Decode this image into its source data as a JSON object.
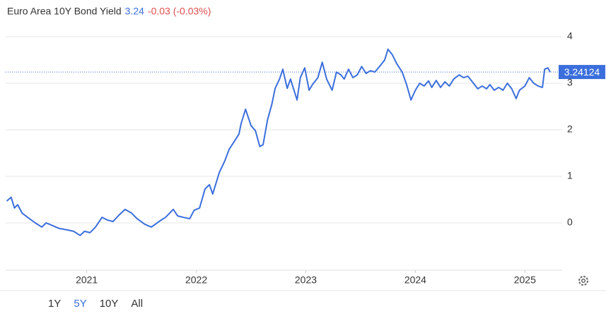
{
  "chart_data": {
    "type": "line",
    "title": "Euro Area 10Y Bond Yield",
    "last_value": 3.24,
    "change_label": "-0.03 (-0.03%)",
    "last_price": 3.24124,
    "color": "#3b6fdc",
    "xlim": [
      2020.26,
      2025.34
    ],
    "ylim": [
      -1,
      4.5
    ],
    "xticks": [
      2021,
      2022,
      2023,
      2024,
      2025
    ],
    "yticks": [
      0,
      1,
      2,
      3,
      4
    ],
    "grid": true,
    "x": [
      2020.27,
      2020.31,
      2020.34,
      2020.37,
      2020.41,
      2020.46,
      2020.53,
      2020.59,
      2020.63,
      2020.69,
      2020.75,
      2020.82,
      2020.88,
      2020.94,
      2020.98,
      2021.03,
      2021.08,
      2021.14,
      2021.19,
      2021.24,
      2021.3,
      2021.35,
      2021.41,
      2021.46,
      2021.53,
      2021.59,
      2021.66,
      2021.72,
      2021.79,
      2021.83,
      2021.88,
      2021.94,
      2021.98,
      2022.03,
      2022.08,
      2022.12,
      2022.15,
      2022.21,
      2022.26,
      2022.3,
      2022.35,
      2022.39,
      2022.41,
      2022.45,
      2022.5,
      2022.54,
      2022.58,
      2022.61,
      2022.65,
      2022.69,
      2022.72,
      2022.76,
      2022.79,
      2022.83,
      2022.86,
      2022.92,
      2022.95,
      2022.99,
      2023.03,
      2023.06,
      2023.11,
      2023.15,
      2023.19,
      2023.24,
      2023.28,
      2023.32,
      2023.35,
      2023.39,
      2023.43,
      2023.47,
      2023.51,
      2023.55,
      2023.59,
      2023.63,
      2023.67,
      2023.72,
      2023.75,
      2023.79,
      2023.83,
      2023.88,
      2023.92,
      2023.96,
      2024.0,
      2024.04,
      2024.08,
      2024.12,
      2024.15,
      2024.19,
      2024.23,
      2024.27,
      2024.31,
      2024.35,
      2024.4,
      2024.44,
      2024.48,
      2024.52,
      2024.57,
      2024.61,
      2024.65,
      2024.68,
      2024.72,
      2024.76,
      2024.8,
      2024.84,
      2024.88,
      2024.92,
      2024.95,
      2025.0,
      2025.04,
      2025.08,
      2025.12,
      2025.16,
      2025.18,
      2025.21,
      2025.23
    ],
    "series": [
      {
        "name": "Euro Area 10Y Bond Yield",
        "color": "#3b6fdc",
        "values": [
          0.47,
          0.55,
          0.32,
          0.39,
          0.21,
          0.12,
          0,
          -0.09,
          0,
          -0.06,
          -0.12,
          -0.15,
          -0.18,
          -0.27,
          -0.18,
          -0.21,
          -0.09,
          0.12,
          0.06,
          0.03,
          0.18,
          0.29,
          0.21,
          0.09,
          -0.03,
          -0.09,
          0.03,
          0.12,
          0.29,
          0.15,
          0.12,
          0.09,
          0.27,
          0.32,
          0.73,
          0.82,
          0.62,
          1.08,
          1.33,
          1.58,
          1.76,
          1.91,
          2.14,
          2.44,
          2.09,
          1.98,
          1.64,
          1.68,
          2.21,
          2.55,
          2.89,
          3.09,
          3.3,
          2.89,
          3.09,
          2.64,
          3.12,
          3.33,
          2.85,
          2.97,
          3.12,
          3.45,
          3.09,
          2.85,
          3.24,
          3.18,
          3.09,
          3.3,
          3.12,
          3.18,
          3.36,
          3.21,
          3.27,
          3.24,
          3.35,
          3.5,
          3.73,
          3.61,
          3.42,
          3.24,
          2.97,
          2.64,
          2.85,
          3.0,
          2.94,
          3.05,
          2.91,
          3.06,
          2.91,
          3.03,
          2.94,
          3.09,
          3.18,
          3.12,
          3.15,
          3.03,
          2.88,
          2.94,
          2.88,
          2.97,
          2.85,
          2.91,
          2.85,
          3.0,
          2.88,
          2.67,
          2.85,
          2.94,
          3.12,
          3.0,
          2.94,
          2.91,
          3.3,
          3.33,
          3.24
        ]
      }
    ],
    "range_buttons": [
      "1Y",
      "5Y",
      "10Y",
      "All"
    ],
    "selected_range": 1
  }
}
